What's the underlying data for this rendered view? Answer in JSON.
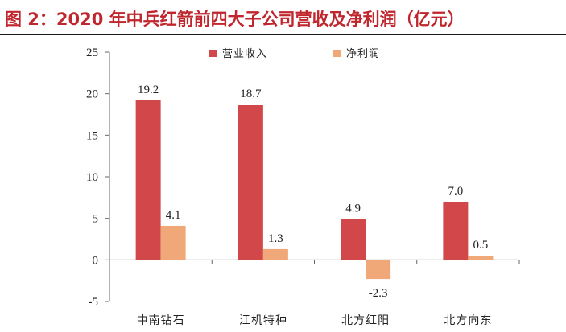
{
  "header": {
    "title": "图 2：2020 年中兵红箭前四大子公司营收及净利润（亿元）"
  },
  "chart_data": {
    "type": "bar",
    "categories": [
      "中南钻石",
      "江机特种",
      "北方红阳",
      "北方向东"
    ],
    "series": [
      {
        "name": "营业收入",
        "values": [
          19.2,
          18.7,
          4.9,
          7.0
        ],
        "labels": [
          "19.2",
          "18.7",
          "4.9",
          "7.0"
        ],
        "color": "#d2484a"
      },
      {
        "name": "净利润",
        "values": [
          4.1,
          1.3,
          -2.3,
          0.5
        ],
        "labels": [
          "4.1",
          "1.3",
          "-2.3",
          "0.5"
        ],
        "color": "#f1a878"
      }
    ],
    "ylim": [
      -5,
      25
    ],
    "yticks": [
      -5,
      0,
      5,
      10,
      15,
      20,
      25
    ],
    "legend_position": "top",
    "grid": false
  }
}
